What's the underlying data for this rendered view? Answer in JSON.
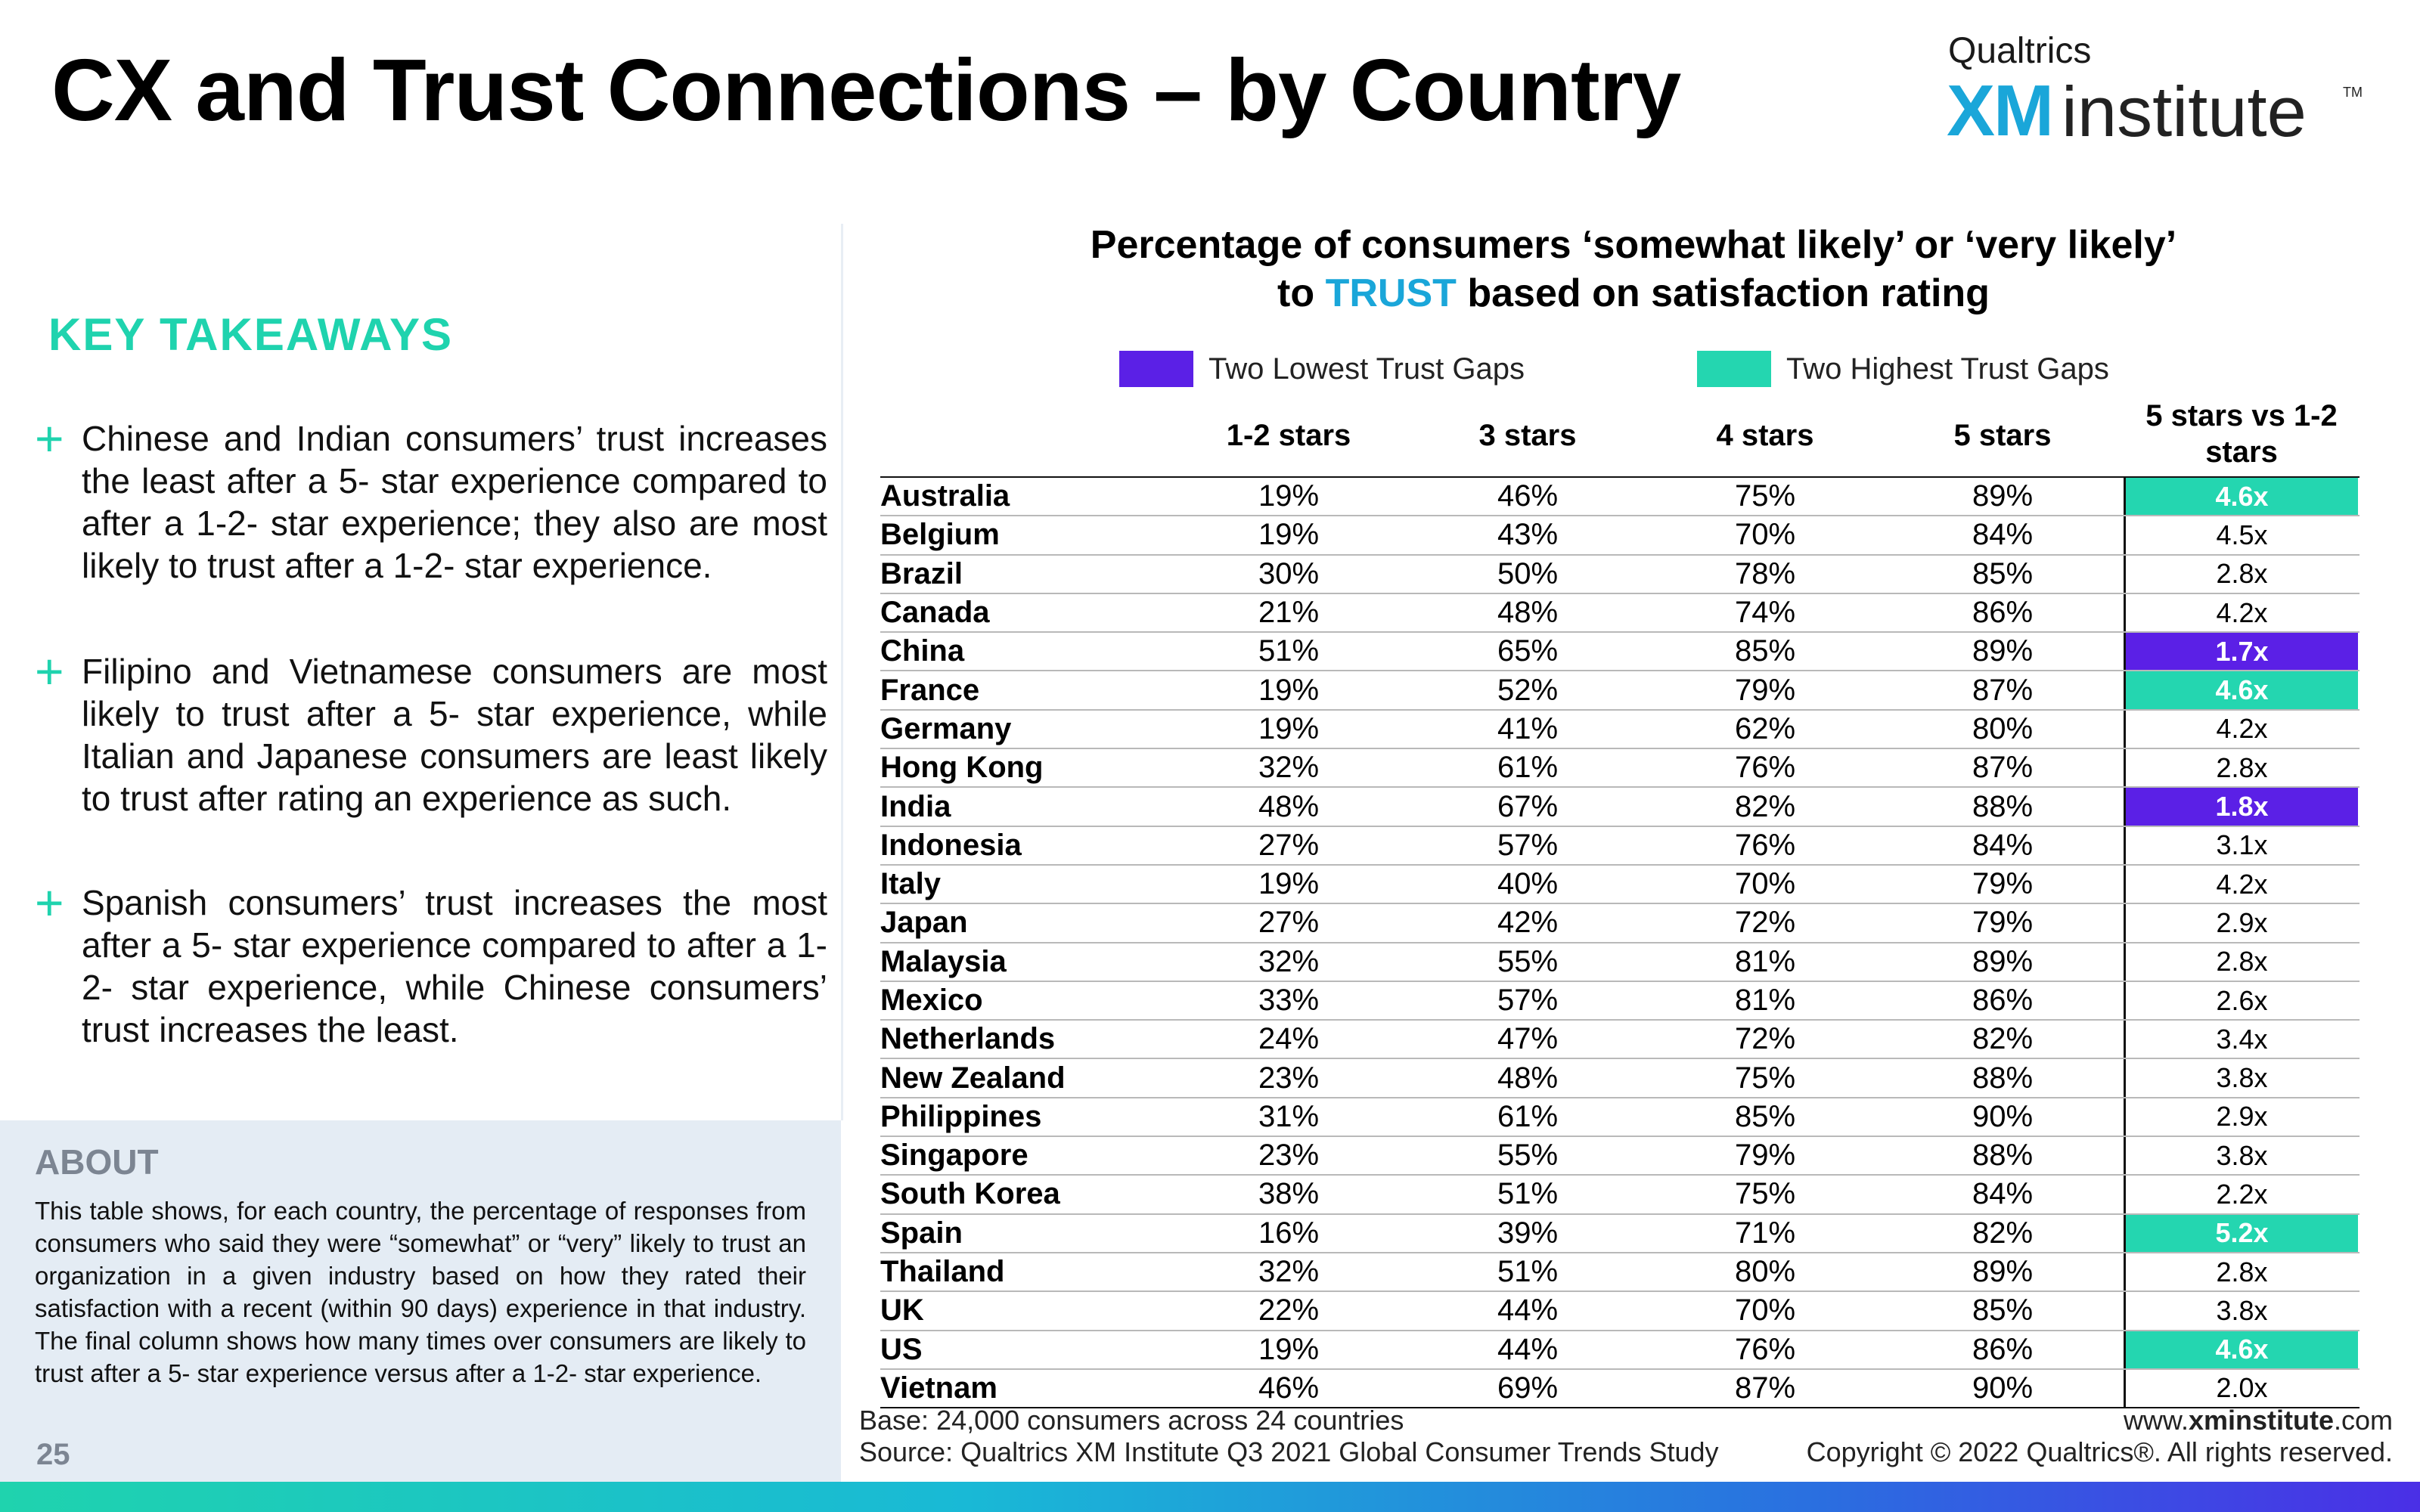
{
  "header": {
    "title": "CX and Trust Connections – by Country"
  },
  "logo": {
    "top_text": "Qualtrics",
    "xm": "XM",
    "institute": "institute",
    "tm": "TM",
    "colors": {
      "xm": "#1aa6d9",
      "text": "#222222"
    }
  },
  "takeaways": {
    "heading": "KEY TAKEAWAYS",
    "bullet_symbol": "+",
    "items": [
      "Chinese and Indian consumers’ trust increases the least after a 5- star experience compared to after a 1-2- star experience; they also are most likely to trust after a 1-2- star experience.",
      "Filipino and Vietnamese consumers are most likely to trust after a 5- star experience, while Italian and Japanese consumers are least likely to trust after rating an experience as such.",
      "Spanish consumers’ trust increases the most after a 5- star experience compared to after a 1-2- star experience, while Chinese consumers’ trust increases the least."
    ]
  },
  "about": {
    "heading": "ABOUT",
    "text": "This table shows, for each country, the percentage of responses from consumers who said they were “somewhat” or “very” likely to trust an organization in a given industry based on how they rated their satisfaction with a recent (within 90 days) experience in that industry. The final column shows how many times over consumers are likely to trust after a 5- star experience versus after a 1-2- star experience."
  },
  "page_number": "25",
  "chart": {
    "title_line1": "Percentage of consumers ‘somewhat likely’ or ‘very likely’",
    "title_line2_pre": "to ",
    "title_line2_highlight": "TRUST",
    "title_line2_post": " based on satisfaction rating",
    "legend": {
      "low_label": "Two Lowest Trust Gaps",
      "high_label": "Two Highest Trust Gaps",
      "low_color": "#5b20e6",
      "high_color": "#24d6b0"
    }
  },
  "table": {
    "headers": [
      "1-2 stars",
      "3 stars",
      "4 stars",
      "5 stars",
      "5 stars vs 1-2 stars"
    ],
    "rows": [
      {
        "country": "Australia",
        "s12": "19%",
        "s3": "46%",
        "s4": "75%",
        "s5": "89%",
        "ratio": "4.6x",
        "hl": "high"
      },
      {
        "country": "Belgium",
        "s12": "19%",
        "s3": "43%",
        "s4": "70%",
        "s5": "84%",
        "ratio": "4.5x",
        "hl": ""
      },
      {
        "country": "Brazil",
        "s12": "30%",
        "s3": "50%",
        "s4": "78%",
        "s5": "85%",
        "ratio": "2.8x",
        "hl": ""
      },
      {
        "country": "Canada",
        "s12": "21%",
        "s3": "48%",
        "s4": "74%",
        "s5": "86%",
        "ratio": "4.2x",
        "hl": ""
      },
      {
        "country": "China",
        "s12": "51%",
        "s3": "65%",
        "s4": "85%",
        "s5": "89%",
        "ratio": "1.7x",
        "hl": "low"
      },
      {
        "country": "France",
        "s12": "19%",
        "s3": "52%",
        "s4": "79%",
        "s5": "87%",
        "ratio": "4.6x",
        "hl": "high"
      },
      {
        "country": "Germany",
        "s12": "19%",
        "s3": "41%",
        "s4": "62%",
        "s5": "80%",
        "ratio": "4.2x",
        "hl": ""
      },
      {
        "country": "Hong Kong",
        "s12": "32%",
        "s3": "61%",
        "s4": "76%",
        "s5": "87%",
        "ratio": "2.8x",
        "hl": ""
      },
      {
        "country": "India",
        "s12": "48%",
        "s3": "67%",
        "s4": "82%",
        "s5": "88%",
        "ratio": "1.8x",
        "hl": "low"
      },
      {
        "country": "Indonesia",
        "s12": "27%",
        "s3": "57%",
        "s4": "76%",
        "s5": "84%",
        "ratio": "3.1x",
        "hl": ""
      },
      {
        "country": "Italy",
        "s12": "19%",
        "s3": "40%",
        "s4": "70%",
        "s5": "79%",
        "ratio": "4.2x",
        "hl": ""
      },
      {
        "country": "Japan",
        "s12": "27%",
        "s3": "42%",
        "s4": "72%",
        "s5": "79%",
        "ratio": "2.9x",
        "hl": ""
      },
      {
        "country": "Malaysia",
        "s12": "32%",
        "s3": "55%",
        "s4": "81%",
        "s5": "89%",
        "ratio": "2.8x",
        "hl": ""
      },
      {
        "country": "Mexico",
        "s12": "33%",
        "s3": "57%",
        "s4": "81%",
        "s5": "86%",
        "ratio": "2.6x",
        "hl": ""
      },
      {
        "country": "Netherlands",
        "s12": "24%",
        "s3": "47%",
        "s4": "72%",
        "s5": "82%",
        "ratio": "3.4x",
        "hl": ""
      },
      {
        "country": "New Zealand",
        "s12": "23%",
        "s3": "48%",
        "s4": "75%",
        "s5": "88%",
        "ratio": "3.8x",
        "hl": ""
      },
      {
        "country": "Philippines",
        "s12": "31%",
        "s3": "61%",
        "s4": "85%",
        "s5": "90%",
        "ratio": "2.9x",
        "hl": ""
      },
      {
        "country": "Singapore",
        "s12": "23%",
        "s3": "55%",
        "s4": "79%",
        "s5": "88%",
        "ratio": "3.8x",
        "hl": ""
      },
      {
        "country": "South Korea",
        "s12": "38%",
        "s3": "51%",
        "s4": "75%",
        "s5": "84%",
        "ratio": "2.2x",
        "hl": ""
      },
      {
        "country": "Spain",
        "s12": "16%",
        "s3": "39%",
        "s4": "71%",
        "s5": "82%",
        "ratio": "5.2x",
        "hl": "high"
      },
      {
        "country": "Thailand",
        "s12": "32%",
        "s3": "51%",
        "s4": "80%",
        "s5": "89%",
        "ratio": "2.8x",
        "hl": ""
      },
      {
        "country": "UK",
        "s12": "22%",
        "s3": "44%",
        "s4": "70%",
        "s5": "85%",
        "ratio": "3.8x",
        "hl": ""
      },
      {
        "country": "US",
        "s12": "19%",
        "s3": "44%",
        "s4": "76%",
        "s5": "86%",
        "ratio": "4.6x",
        "hl": "high"
      },
      {
        "country": "Vietnam",
        "s12": "46%",
        "s3": "69%",
        "s4": "87%",
        "s5": "90%",
        "ratio": "2.0x",
        "hl": ""
      }
    ]
  },
  "footer": {
    "base": "Base: 24,000 consumers across 24 countries",
    "source": "Source: Qualtrics XM Institute Q3 2021 Global Consumer Trends Study",
    "url_prefix": "www.",
    "url_bold": "xminstitute",
    "url_suffix": ".com",
    "copyright": "Copyright © 2022 Qualtrics®. All rights reserved."
  },
  "colors": {
    "accent_green": "#1fd3ae",
    "accent_blue": "#1aa6d9",
    "about_bg": "#e4ecf4"
  }
}
